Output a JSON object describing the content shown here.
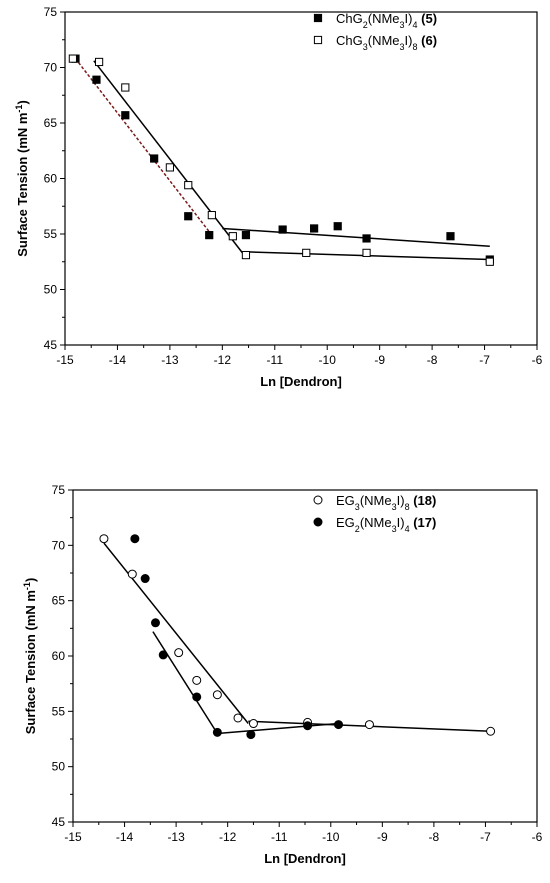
{
  "chart_data": [
    {
      "type": "scatter",
      "title": "",
      "xlabel": "Ln [Dendron]",
      "ylabel_parts": [
        "Surface Tension (mN m",
        "-1",
        ")"
      ],
      "xlim": [
        -15,
        -6
      ],
      "ylim": [
        45,
        75
      ],
      "xticks": [
        -15,
        -14,
        -13,
        -12,
        -11,
        -10,
        -9,
        -8,
        -7,
        -6
      ],
      "yticks": [
        45,
        50,
        55,
        60,
        65,
        70,
        75
      ],
      "grid": false,
      "legend_position": "top-right",
      "series": [
        {
          "marker": "filled-square",
          "legend_parts": [
            [
              "ChG",
              ""
            ],
            [
              "2",
              "sub"
            ],
            [
              "(NMe",
              ""
            ],
            [
              "3",
              "sub"
            ],
            [
              "I)",
              ""
            ],
            [
              "4",
              "sub"
            ],
            [
              " ",
              ""
            ],
            [
              "(5)",
              "bold"
            ]
          ],
          "points": [
            [
              -14.8,
              70.8
            ],
            [
              -14.4,
              68.9
            ],
            [
              -13.85,
              65.7
            ],
            [
              -13.3,
              61.8
            ],
            [
              -12.65,
              56.6
            ],
            [
              -12.25,
              54.9
            ],
            [
              -11.55,
              54.9
            ],
            [
              -10.85,
              55.4
            ],
            [
              -10.25,
              55.5
            ],
            [
              -9.8,
              55.7
            ],
            [
              -9.25,
              54.6
            ],
            [
              -7.65,
              54.8
            ],
            [
              -6.9,
              52.7
            ]
          ],
          "fit_lines": [
            {
              "from": [
                -14.8,
                70.8
              ],
              "to": [
                -12.2,
                54.9
              ],
              "style": "dashed",
              "color": "#7a1a1a"
            },
            {
              "from": [
                -12.0,
                55.5
              ],
              "to": [
                -6.9,
                53.9
              ],
              "style": "solid",
              "color": "#000000"
            }
          ]
        },
        {
          "marker": "open-square",
          "legend_parts": [
            [
              "ChG",
              ""
            ],
            [
              "3",
              "sub"
            ],
            [
              "(NMe",
              ""
            ],
            [
              "3",
              "sub"
            ],
            [
              "I)",
              ""
            ],
            [
              "8",
              "sub"
            ],
            [
              " ",
              ""
            ],
            [
              "(6)",
              "bold"
            ]
          ],
          "points": [
            [
              -14.85,
              70.8
            ],
            [
              -14.35,
              70.5
            ],
            [
              -13.85,
              68.2
            ],
            [
              -13.0,
              61.0
            ],
            [
              -12.65,
              59.4
            ],
            [
              -12.2,
              56.7
            ],
            [
              -11.8,
              54.8
            ],
            [
              -11.55,
              53.1
            ],
            [
              -10.4,
              53.3
            ],
            [
              -9.25,
              53.3
            ],
            [
              -6.9,
              52.5
            ]
          ],
          "fit_lines": [
            {
              "from": [
                -14.45,
                70.6
              ],
              "to": [
                -11.6,
                53.2
              ],
              "style": "solid",
              "color": "#000000"
            },
            {
              "from": [
                -11.6,
                53.4
              ],
              "to": [
                -6.9,
                52.7
              ],
              "style": "solid",
              "color": "#000000"
            }
          ]
        }
      ]
    },
    {
      "type": "scatter",
      "title": "",
      "xlabel": "Ln [Dendron]",
      "ylabel_parts": [
        "Surface Tension (mN m",
        "-1",
        ")"
      ],
      "xlim": [
        -15,
        -6
      ],
      "ylim": [
        45,
        75
      ],
      "xticks": [
        -15,
        -14,
        -13,
        -12,
        -11,
        -10,
        -9,
        -8,
        -7,
        -6
      ],
      "yticks": [
        45,
        50,
        55,
        60,
        65,
        70,
        75
      ],
      "grid": false,
      "legend_position": "top-right",
      "series": [
        {
          "marker": "open-circle",
          "legend_parts": [
            [
              "EG",
              ""
            ],
            [
              "3",
              "sub"
            ],
            [
              "(NMe",
              ""
            ],
            [
              "3",
              "sub"
            ],
            [
              "I)",
              ""
            ],
            [
              "8",
              "sub"
            ],
            [
              " ",
              ""
            ],
            [
              "(18)",
              "bold"
            ]
          ],
          "points": [
            [
              -14.4,
              70.6
            ],
            [
              -13.85,
              67.4
            ],
            [
              -12.95,
              60.3
            ],
            [
              -12.6,
              57.8
            ],
            [
              -12.2,
              56.5
            ],
            [
              -11.8,
              54.4
            ],
            [
              -11.5,
              53.9
            ],
            [
              -10.45,
              54.0
            ],
            [
              -9.25,
              53.8
            ],
            [
              -6.9,
              53.2
            ]
          ],
          "fit_lines": [
            {
              "from": [
                -14.4,
                70.2
              ],
              "to": [
                -11.6,
                53.9
              ],
              "style": "solid",
              "color": "#000000"
            },
            {
              "from": [
                -11.6,
                54.1
              ],
              "to": [
                -6.9,
                53.2
              ],
              "style": "solid",
              "color": "#000000"
            }
          ]
        },
        {
          "marker": "filled-circle",
          "legend_parts": [
            [
              "EG",
              ""
            ],
            [
              "2",
              "sub"
            ],
            [
              "(NMe",
              ""
            ],
            [
              "3",
              "sub"
            ],
            [
              "I)",
              ""
            ],
            [
              "4",
              "sub"
            ],
            [
              " ",
              ""
            ],
            [
              "(17)",
              "bold"
            ]
          ],
          "points": [
            [
              -13.8,
              70.6
            ],
            [
              -13.6,
              67.0
            ],
            [
              -13.4,
              63.0
            ],
            [
              -13.25,
              60.1
            ],
            [
              -12.6,
              56.3
            ],
            [
              -12.2,
              53.1
            ],
            [
              -11.55,
              52.9
            ],
            [
              -10.45,
              53.7
            ],
            [
              -9.85,
              53.8
            ]
          ],
          "fit_lines": [
            {
              "from": [
                -13.45,
                62.2
              ],
              "to": [
                -12.2,
                53.0
              ],
              "style": "solid",
              "color": "#000000"
            },
            {
              "from": [
                -12.2,
                53.0
              ],
              "to": [
                -9.85,
                53.9
              ],
              "style": "solid",
              "color": "#000000"
            }
          ]
        }
      ]
    }
  ]
}
